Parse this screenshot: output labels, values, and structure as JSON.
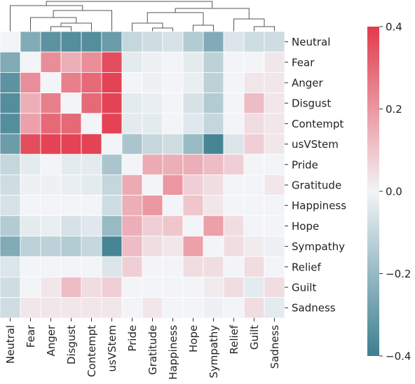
{
  "chart_data": {
    "type": "heatmap",
    "title": "",
    "rows": [
      "Neutral",
      "Fear",
      "Anger",
      "Disgust",
      "Contempt",
      "usVStem",
      "Pride",
      "Gratitude",
      "Happiness",
      "Hope",
      "Sympathy",
      "Relief",
      "Guilt",
      "Sadness"
    ],
    "columns": [
      "Neutral",
      "Fear",
      "Anger",
      "Disgust",
      "Contempt",
      "usVStem",
      "Pride",
      "Gratitude",
      "Happiness",
      "Hope",
      "Sympathy",
      "Relief",
      "Guilt",
      "Sadness"
    ],
    "values": [
      [
        0.0,
        -0.25,
        -0.33,
        -0.35,
        -0.35,
        -0.3,
        -0.1,
        -0.08,
        -0.06,
        -0.14,
        -0.25,
        -0.05,
        -0.08,
        -0.08
      ],
      [
        -0.25,
        0.0,
        0.22,
        0.15,
        0.22,
        0.36,
        -0.03,
        -0.01,
        0.0,
        -0.03,
        -0.12,
        0.0,
        0.0,
        0.03
      ],
      [
        -0.33,
        0.22,
        0.0,
        0.25,
        0.3,
        0.38,
        0.0,
        -0.01,
        0.0,
        -0.02,
        -0.12,
        0.0,
        0.03,
        0.03
      ],
      [
        -0.35,
        0.15,
        0.25,
        0.0,
        0.3,
        0.38,
        -0.03,
        -0.02,
        0.0,
        -0.06,
        -0.14,
        0.0,
        0.12,
        0.03
      ],
      [
        -0.35,
        0.18,
        0.3,
        0.3,
        0.0,
        0.38,
        -0.03,
        -0.03,
        0.0,
        -0.04,
        -0.1,
        0.0,
        0.05,
        0.03
      ],
      [
        -0.3,
        0.36,
        0.38,
        0.38,
        0.38,
        0.0,
        -0.16,
        -0.1,
        -0.08,
        -0.2,
        -0.38,
        -0.05,
        0.08,
        0.03
      ],
      [
        -0.1,
        -0.03,
        0.0,
        -0.03,
        -0.03,
        -0.16,
        0.0,
        0.16,
        0.15,
        0.15,
        0.12,
        0.08,
        0.0,
        0.0
      ],
      [
        -0.08,
        -0.01,
        -0.01,
        -0.02,
        -0.03,
        -0.1,
        0.16,
        0.0,
        0.2,
        0.08,
        0.05,
        0.0,
        0.0,
        0.03
      ],
      [
        -0.06,
        0.0,
        0.0,
        0.0,
        0.0,
        -0.08,
        0.15,
        0.2,
        0.0,
        0.1,
        0.03,
        0.0,
        0.0,
        0.0
      ],
      [
        -0.14,
        -0.03,
        -0.02,
        -0.06,
        -0.04,
        -0.2,
        0.15,
        0.08,
        0.1,
        0.0,
        0.18,
        0.05,
        0.0,
        0.0
      ],
      [
        -0.25,
        -0.12,
        -0.12,
        -0.14,
        -0.1,
        -0.38,
        0.12,
        0.05,
        0.03,
        0.18,
        0.0,
        0.05,
        0.02,
        -0.01
      ],
      [
        -0.05,
        0.0,
        0.0,
        0.0,
        0.0,
        -0.05,
        0.08,
        0.0,
        0.0,
        0.05,
        0.05,
        0.0,
        0.05,
        0.0
      ],
      [
        -0.08,
        0.0,
        0.03,
        0.12,
        0.05,
        0.08,
        0.0,
        0.0,
        0.0,
        0.0,
        0.02,
        0.05,
        -0.03,
        0.05
      ],
      [
        -0.08,
        0.03,
        0.03,
        0.03,
        0.03,
        0.03,
        0.0,
        0.03,
        0.0,
        0.0,
        -0.01,
        0.0,
        0.05,
        -0.03
      ]
    ],
    "colorbar": {
      "vmin": -0.4,
      "vmax": 0.4,
      "ticks": [
        0.4,
        0.2,
        0.0,
        -0.2,
        -0.4
      ],
      "tick_labels": [
        "0.4",
        "0.2",
        "0.0",
        "−0.2",
        "−0.4"
      ]
    },
    "colors": {
      "low": "#3d7f8f",
      "mid": "#f2f4f7",
      "high": "#e23a4c"
    },
    "dendrogram": {
      "position": "top",
      "linkage_order": "columns"
    }
  }
}
